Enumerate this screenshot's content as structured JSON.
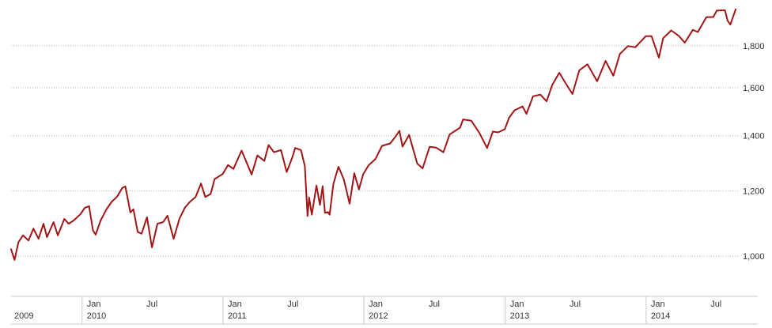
{
  "chart_data": {
    "type": "line",
    "title": "",
    "xlabel": "",
    "ylabel": "",
    "y_scale": "log",
    "ylim": [
      900,
      2000
    ],
    "xlim": [
      "2009-07-01",
      "2014-08-31"
    ],
    "grid": "horizontal dotted",
    "y_ticks": [
      {
        "value": 1000,
        "label": "1,000"
      },
      {
        "value": 1200,
        "label": "1,200"
      },
      {
        "value": 1400,
        "label": "1,400"
      },
      {
        "value": 1600,
        "label": "1,600"
      },
      {
        "value": 1800,
        "label": "1,800"
      }
    ],
    "x_month_ticks": [
      {
        "date": "2010-01-01",
        "label": "Jan"
      },
      {
        "date": "2010-07-01",
        "label": "Jul"
      },
      {
        "date": "2011-01-01",
        "label": "Jan"
      },
      {
        "date": "2011-07-01",
        "label": "Jul"
      },
      {
        "date": "2012-01-01",
        "label": "Jan"
      },
      {
        "date": "2012-07-01",
        "label": "Jul"
      },
      {
        "date": "2013-01-01",
        "label": "Jan"
      },
      {
        "date": "2013-07-01",
        "label": "Jul"
      },
      {
        "date": "2014-01-01",
        "label": "Jan"
      },
      {
        "date": "2014-07-01",
        "label": "Jul"
      }
    ],
    "x_year_labels": [
      {
        "date": "2009-07-01",
        "label": "2009"
      },
      {
        "date": "2010-01-01",
        "label": "2010"
      },
      {
        "date": "2011-01-01",
        "label": "2011"
      },
      {
        "date": "2012-01-01",
        "label": "2012"
      },
      {
        "date": "2013-01-01",
        "label": "2013"
      },
      {
        "date": "2014-01-01",
        "label": "2014"
      }
    ],
    "series": [
      {
        "color": "#a31515",
        "points": [
          [
            "2009-07-01",
            1020
          ],
          [
            "2009-07-10",
            990
          ],
          [
            "2009-07-20",
            1040
          ],
          [
            "2009-08-01",
            1060
          ],
          [
            "2009-08-15",
            1045
          ],
          [
            "2009-08-28",
            1080
          ],
          [
            "2009-09-10",
            1050
          ],
          [
            "2009-09-23",
            1095
          ],
          [
            "2009-10-02",
            1055
          ],
          [
            "2009-10-19",
            1100
          ],
          [
            "2009-10-30",
            1060
          ],
          [
            "2009-11-16",
            1110
          ],
          [
            "2009-11-27",
            1095
          ],
          [
            "2009-12-10",
            1105
          ],
          [
            "2009-12-28",
            1125
          ],
          [
            "2010-01-08",
            1145
          ],
          [
            "2010-01-19",
            1150
          ],
          [
            "2010-01-29",
            1075
          ],
          [
            "2010-02-05",
            1062
          ],
          [
            "2010-02-18",
            1105
          ],
          [
            "2010-03-05",
            1140
          ],
          [
            "2010-03-19",
            1165
          ],
          [
            "2010-04-01",
            1180
          ],
          [
            "2010-04-15",
            1210
          ],
          [
            "2010-04-23",
            1215
          ],
          [
            "2010-05-06",
            1130
          ],
          [
            "2010-05-14",
            1140
          ],
          [
            "2010-05-25",
            1070
          ],
          [
            "2010-06-04",
            1065
          ],
          [
            "2010-06-18",
            1115
          ],
          [
            "2010-07-01",
            1025
          ],
          [
            "2010-07-15",
            1095
          ],
          [
            "2010-07-30",
            1100
          ],
          [
            "2010-08-10",
            1120
          ],
          [
            "2010-08-26",
            1050
          ],
          [
            "2010-09-10",
            1110
          ],
          [
            "2010-09-24",
            1145
          ],
          [
            "2010-10-08",
            1165
          ],
          [
            "2010-10-22",
            1180
          ],
          [
            "2010-11-05",
            1225
          ],
          [
            "2010-11-16",
            1180
          ],
          [
            "2010-11-30",
            1190
          ],
          [
            "2010-12-10",
            1240
          ],
          [
            "2010-12-31",
            1258
          ],
          [
            "2011-01-14",
            1290
          ],
          [
            "2011-01-28",
            1276
          ],
          [
            "2011-02-18",
            1343
          ],
          [
            "2011-03-01",
            1306
          ],
          [
            "2011-03-16",
            1256
          ],
          [
            "2011-03-31",
            1325
          ],
          [
            "2011-04-18",
            1305
          ],
          [
            "2011-04-29",
            1364
          ],
          [
            "2011-05-13",
            1337
          ],
          [
            "2011-05-31",
            1345
          ],
          [
            "2011-06-15",
            1265
          ],
          [
            "2011-06-30",
            1320
          ],
          [
            "2011-07-07",
            1353
          ],
          [
            "2011-07-22",
            1345
          ],
          [
            "2011-08-01",
            1286
          ],
          [
            "2011-08-08",
            1119
          ],
          [
            "2011-08-12",
            1178
          ],
          [
            "2011-08-19",
            1123
          ],
          [
            "2011-08-31",
            1218
          ],
          [
            "2011-09-09",
            1154
          ],
          [
            "2011-09-16",
            1216
          ],
          [
            "2011-09-22",
            1129
          ],
          [
            "2011-09-30",
            1131
          ],
          [
            "2011-10-04",
            1123
          ],
          [
            "2011-10-14",
            1224
          ],
          [
            "2011-10-27",
            1284
          ],
          [
            "2011-11-10",
            1239
          ],
          [
            "2011-11-25",
            1158
          ],
          [
            "2011-12-07",
            1261
          ],
          [
            "2011-12-19",
            1205
          ],
          [
            "2011-12-30",
            1257
          ],
          [
            "2012-01-13",
            1289
          ],
          [
            "2012-01-31",
            1312
          ],
          [
            "2012-02-17",
            1361
          ],
          [
            "2012-03-09",
            1370
          ],
          [
            "2012-03-23",
            1397
          ],
          [
            "2012-04-02",
            1419
          ],
          [
            "2012-04-10",
            1358
          ],
          [
            "2012-04-27",
            1403
          ],
          [
            "2012-05-18",
            1295
          ],
          [
            "2012-06-01",
            1278
          ],
          [
            "2012-06-19",
            1357
          ],
          [
            "2012-07-06",
            1354
          ],
          [
            "2012-07-25",
            1337
          ],
          [
            "2012-08-10",
            1405
          ],
          [
            "2012-09-06",
            1432
          ],
          [
            "2012-09-14",
            1465
          ],
          [
            "2012-10-05",
            1460
          ],
          [
            "2012-10-26",
            1411
          ],
          [
            "2012-11-15",
            1353
          ],
          [
            "2012-11-30",
            1416
          ],
          [
            "2012-12-14",
            1413
          ],
          [
            "2012-12-31",
            1426
          ],
          [
            "2013-01-11",
            1472
          ],
          [
            "2013-01-25",
            1503
          ],
          [
            "2013-02-15",
            1519
          ],
          [
            "2013-02-25",
            1488
          ],
          [
            "2013-03-14",
            1563
          ],
          [
            "2013-04-02",
            1570
          ],
          [
            "2013-04-18",
            1541
          ],
          [
            "2013-05-03",
            1614
          ],
          [
            "2013-05-21",
            1669
          ],
          [
            "2013-06-06",
            1622
          ],
          [
            "2013-06-24",
            1573
          ],
          [
            "2013-07-12",
            1680
          ],
          [
            "2013-08-02",
            1709
          ],
          [
            "2013-08-27",
            1630
          ],
          [
            "2013-09-18",
            1725
          ],
          [
            "2013-10-08",
            1655
          ],
          [
            "2013-10-25",
            1759
          ],
          [
            "2013-11-15",
            1798
          ],
          [
            "2013-12-04",
            1792
          ],
          [
            "2013-12-31",
            1848
          ],
          [
            "2014-01-15",
            1848
          ],
          [
            "2014-02-03",
            1741
          ],
          [
            "2014-02-14",
            1838
          ],
          [
            "2014-03-07",
            1878
          ],
          [
            "2014-03-27",
            1849
          ],
          [
            "2014-04-11",
            1815
          ],
          [
            "2014-05-02",
            1881
          ],
          [
            "2014-05-15",
            1870
          ],
          [
            "2014-06-06",
            1949
          ],
          [
            "2014-06-24",
            1950
          ],
          [
            "2014-07-03",
            1985
          ],
          [
            "2014-07-24",
            1987
          ],
          [
            "2014-07-31",
            1930
          ],
          [
            "2014-08-07",
            1909
          ],
          [
            "2014-08-21",
            1992
          ]
        ]
      }
    ]
  }
}
